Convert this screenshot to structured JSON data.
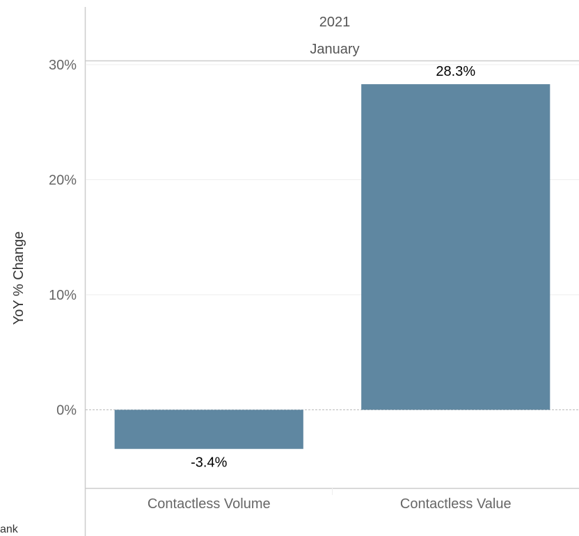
{
  "chart_data": {
    "type": "bar",
    "header": {
      "year": "2021",
      "month": "January"
    },
    "categories": [
      "Contactless Volume",
      "Contactless Value"
    ],
    "values": [
      -3.4,
      28.3
    ],
    "data_labels": [
      "-3.4%",
      "28.3%"
    ],
    "ylabel": "YoY % Change",
    "yticks": [
      0,
      10,
      20,
      30
    ],
    "ytick_labels": [
      "0%",
      "10%",
      "20%",
      "30%"
    ],
    "ylim": [
      -6.8,
      30.3
    ],
    "grid": true,
    "bar_color": "#5f87a1",
    "footer_fragment": "ank"
  }
}
